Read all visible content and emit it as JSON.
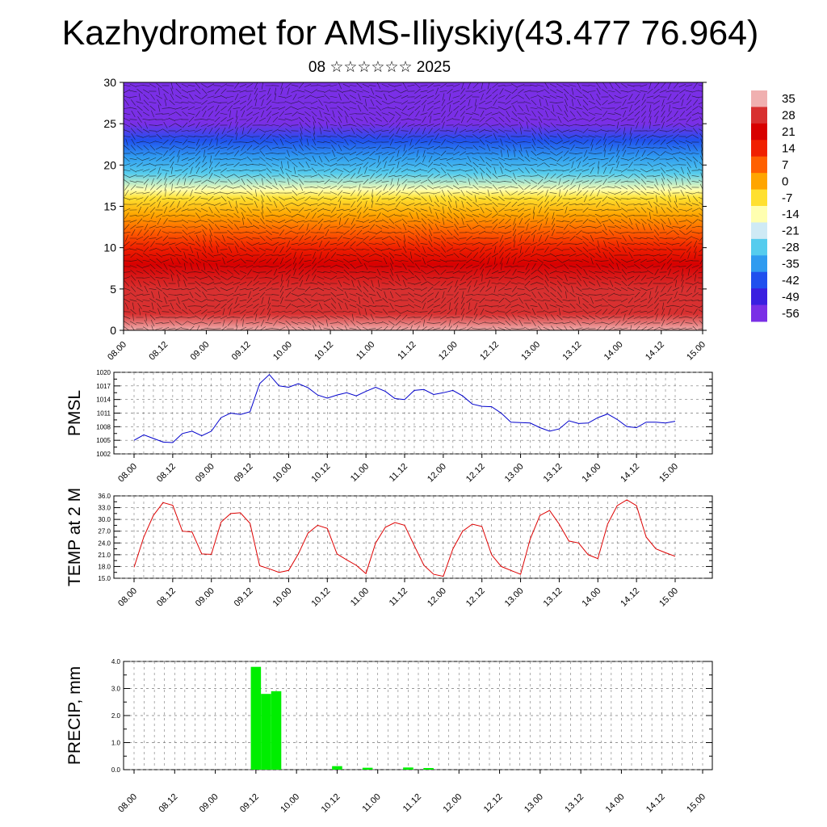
{
  "header": {
    "title": "Kazhydromet for AMS-Iliyskiy(43.477 76.964)",
    "subtitle": "08 ☆☆☆☆☆☆ 2025"
  },
  "chart_data": [
    {
      "type": "heatmap",
      "name": "cross-section",
      "ylim": [
        0,
        30
      ],
      "yticks": [
        "0",
        "5",
        "10",
        "15",
        "20",
        "25",
        "30"
      ],
      "xticks": [
        "08.00",
        "08.12",
        "09.00",
        "09.12",
        "10.00",
        "10.12",
        "11.00",
        "11.12",
        "12.00",
        "12.12",
        "13.00",
        "13.12",
        "14.00",
        "14.12",
        "15.00"
      ],
      "colorbar": {
        "labels": [
          "35",
          "28",
          "21",
          "14",
          "7",
          "0",
          "-7",
          "-14",
          "-21",
          "-28",
          "-35",
          "-42",
          "-49",
          "-56"
        ],
        "range": [
          -63,
          42
        ],
        "colors": [
          "#7a2fe6",
          "#3a1fe0",
          "#2050ee",
          "#2f9bf0",
          "#55ccee",
          "#cfeaf5",
          "#ffffb0",
          "#ffe030",
          "#ffa500",
          "#ff6000",
          "#f02000",
          "#d80000",
          "#d83030",
          "#f0b0b0"
        ]
      },
      "temperature_profile": [
        {
          "h": 0,
          "t": 36
        },
        {
          "h": 2,
          "t": 32
        },
        {
          "h": 5,
          "t": 27
        },
        {
          "h": 8,
          "t": 24
        },
        {
          "h": 10,
          "t": 18
        },
        {
          "h": 12,
          "t": 8
        },
        {
          "h": 14,
          "t": 1
        },
        {
          "h": 16,
          "t": -8
        },
        {
          "h": 17,
          "t": -14
        },
        {
          "h": 19,
          "t": -26
        },
        {
          "h": 21,
          "t": -38
        },
        {
          "h": 23,
          "t": -48
        },
        {
          "h": 25,
          "t": -56
        },
        {
          "h": 27,
          "t": -60
        },
        {
          "h": 30,
          "t": -64
        }
      ]
    },
    {
      "type": "line",
      "name": "pmsl",
      "ylabel": "PMSL",
      "ylim": [
        1002,
        1020
      ],
      "yticks": [
        "1002",
        "1005",
        "1008",
        "1011",
        "1014",
        "1017",
        "1020"
      ],
      "xticks": [
        "08.00",
        "08.12",
        "09.00",
        "09.12",
        "10.00",
        "10.12",
        "11.00",
        "11.12",
        "12.00",
        "12.12",
        "13.00",
        "13.12",
        "14.00",
        "14.12",
        "15.00"
      ],
      "color": "#0000cc",
      "x": [
        0,
        3,
        6,
        9,
        12,
        15,
        18,
        21,
        24,
        27,
        30,
        33,
        36,
        39,
        42,
        45,
        48,
        51,
        54,
        57,
        60,
        63,
        66,
        69,
        72,
        75,
        78,
        81,
        84,
        87,
        90,
        93,
        96,
        99,
        102,
        105,
        108,
        111,
        114,
        117,
        120,
        123,
        126,
        129,
        132,
        135,
        138,
        141,
        144,
        147,
        150,
        153,
        156,
        159,
        162,
        165,
        168
      ],
      "values": [
        1005,
        1006.2,
        1005.4,
        1004.6,
        1004.5,
        1006.5,
        1007,
        1006,
        1007,
        1010,
        1011,
        1010.7,
        1011.3,
        1017.5,
        1019.5,
        1017,
        1016.7,
        1017.5,
        1016.6,
        1015,
        1014.3,
        1015,
        1015.5,
        1014.8,
        1015.8,
        1016.7,
        1015.8,
        1014.2,
        1014,
        1016,
        1016.2,
        1015.1,
        1015.5,
        1016,
        1014.8,
        1013,
        1012.5,
        1012.4,
        1011,
        1009,
        1008.9,
        1008.8,
        1007.8,
        1007,
        1007.5,
        1009.3,
        1008.7,
        1008.8,
        1010,
        1010.8,
        1009.6,
        1008,
        1007.8,
        1009,
        1009,
        1008.8,
        1009.2
      ]
    },
    {
      "type": "line",
      "name": "temp-2m",
      "ylabel": "TEMP at 2 M",
      "ylim": [
        15,
        36
      ],
      "yticks": [
        "15.0",
        "18.0",
        "21.0",
        "24.0",
        "27.0",
        "30.0",
        "33.0",
        "36.0"
      ],
      "xticks": [
        "08.00",
        "08.12",
        "09.00",
        "09.12",
        "10.00",
        "10.12",
        "11.00",
        "11.12",
        "12.00",
        "12.12",
        "13.00",
        "13.12",
        "14.00",
        "14.12",
        "15.00"
      ],
      "color": "#dd0000",
      "x": [
        0,
        3,
        6,
        9,
        12,
        15,
        18,
        21,
        24,
        27,
        30,
        33,
        36,
        39,
        42,
        45,
        48,
        51,
        54,
        57,
        60,
        63,
        66,
        69,
        72,
        75,
        78,
        81,
        84,
        87,
        90,
        93,
        96,
        99,
        102,
        105,
        108,
        111,
        114,
        117,
        120,
        123,
        126,
        129,
        132,
        135,
        138,
        141,
        144,
        147,
        150,
        153,
        156,
        159,
        162,
        165,
        168
      ],
      "values": [
        17.8,
        25.5,
        31,
        34.3,
        33.6,
        27,
        26.8,
        21.2,
        21.1,
        29.3,
        31.5,
        31.7,
        29,
        18.2,
        17.4,
        16.5,
        17,
        21.2,
        26.5,
        28.5,
        27.7,
        21.2,
        19.7,
        18.3,
        16.2,
        24,
        28,
        29.2,
        28.5,
        23.3,
        18.3,
        16,
        15.5,
        22.5,
        27,
        28.8,
        28.2,
        21,
        18,
        17,
        16,
        25,
        31,
        32.3,
        28.8,
        24.5,
        24,
        21,
        20,
        28.8,
        33.5,
        35,
        33.5,
        25.5,
        22.5,
        21.5,
        20.6
      ]
    },
    {
      "type": "bar",
      "name": "precip",
      "ylabel": "PRECIP, mm",
      "ylim": [
        0,
        4
      ],
      "yticks": [
        "0.0",
        "1.0",
        "2.0",
        "3.0",
        "4.0"
      ],
      "xticks": [
        "08.00",
        "08.12",
        "09.00",
        "09.12",
        "10.00",
        "10.12",
        "11.00",
        "11.12",
        "12.00",
        "12.12",
        "13.00",
        "13.12",
        "14.00",
        "14.12",
        "15.00"
      ],
      "color": "#00ee00",
      "bars": [
        {
          "x": 36,
          "v": 3.8
        },
        {
          "x": 39,
          "v": 2.8
        },
        {
          "x": 42,
          "v": 2.9
        },
        {
          "x": 60,
          "v": 0.13
        },
        {
          "x": 69,
          "v": 0.07
        },
        {
          "x": 81,
          "v": 0.08
        },
        {
          "x": 87,
          "v": 0.06
        }
      ]
    }
  ]
}
